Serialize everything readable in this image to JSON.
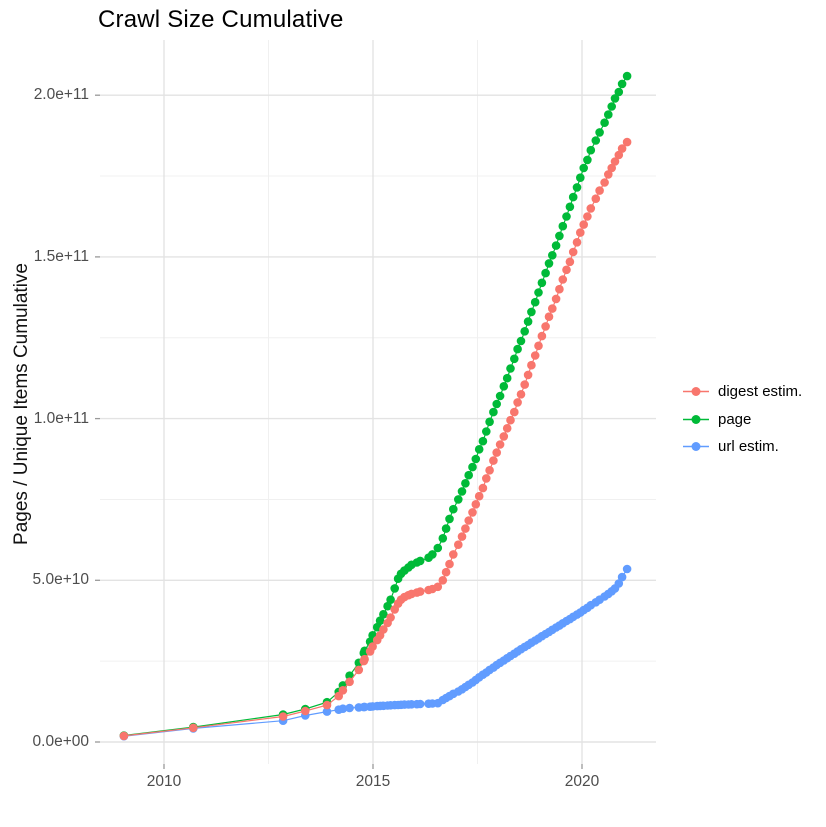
{
  "title": "Crawl Size Cumulative",
  "colors": {
    "background": "#ffffff",
    "grid_major": "#e3e3e3",
    "grid_minor": "#f0f0f0",
    "tick_mark": "#999999",
    "tick_text": "#4d4d4d",
    "title_text": "#000000",
    "series_digest": "#F8766D",
    "series_page": "#00BA38",
    "series_url": "#619CFF"
  },
  "chart_data": {
    "type": "scatter",
    "style": "points joined by thin lines (ggplot-like)",
    "title": "Crawl Size Cumulative",
    "xlabel": "",
    "ylabel": "Pages / Unique Items Cumulative",
    "x_range": [
      2008.5,
      2021.8
    ],
    "y_range": [
      0,
      215000000000.0
    ],
    "grid": true,
    "legend_position": "right",
    "x_tick_values": [
      2010,
      2015,
      2020
    ],
    "x_tick_labels": [
      "2010",
      "2015",
      "2020"
    ],
    "x_minor_ticks": [
      2012.5,
      2017.5
    ],
    "y_tick_values": [
      0,
      50000000000.0,
      100000000000.0,
      150000000000.0,
      200000000000.0
    ],
    "y_tick_labels": [
      "0.0e+00",
      "5.0e+10",
      "1.0e+11",
      "1.5e+11",
      "2.0e+11"
    ],
    "y_minor_ticks": [
      25000000000.0,
      75000000000.0,
      125000000000.0,
      175000000000.0
    ],
    "x": [
      2009.04,
      2010.7,
      2012.85,
      2013.38,
      2013.9,
      2014.18,
      2014.28,
      2014.44,
      2014.66,
      2014.78,
      2014.8,
      2014.93,
      2014.99,
      2015.1,
      2015.17,
      2015.25,
      2015.35,
      2015.42,
      2015.52,
      2015.6,
      2015.67,
      2015.75,
      2015.85,
      2015.92,
      2016.05,
      2016.13,
      2016.33,
      2016.42,
      2016.55,
      2016.67,
      2016.75,
      2016.83,
      2016.92,
      2017.04,
      2017.13,
      2017.21,
      2017.29,
      2017.38,
      2017.46,
      2017.54,
      2017.63,
      2017.71,
      2017.79,
      2017.88,
      2017.96,
      2018.04,
      2018.13,
      2018.21,
      2018.29,
      2018.38,
      2018.46,
      2018.54,
      2018.63,
      2018.71,
      2018.79,
      2018.88,
      2018.96,
      2019.04,
      2019.13,
      2019.21,
      2019.29,
      2019.38,
      2019.46,
      2019.54,
      2019.63,
      2019.71,
      2019.79,
      2019.88,
      2019.96,
      2020.04,
      2020.13,
      2020.21,
      2020.33,
      2020.42,
      2020.54,
      2020.63,
      2020.71,
      2020.79,
      2020.88,
      2020.96,
      2021.08
    ],
    "series": [
      {
        "name": "digest estim.",
        "color": "#F8766D",
        "values": [
          1900000000.0,
          4400000000.0,
          7900000000.0,
          9600000000.0,
          11400000000.0,
          14200000000.0,
          16000000000.0,
          18600000000.0,
          22300000000.0,
          25000000000.0,
          25600000000.0,
          28000000000.0,
          29500000000.0,
          31500000000.0,
          33000000000.0,
          34800000000.0,
          36800000000.0,
          38500000000.0,
          41000000000.0,
          42800000000.0,
          44000000000.0,
          44800000000.0,
          45400000000.0,
          45800000000.0,
          46200000000.0,
          46500000000.0,
          47000000000.0,
          47300000000.0,
          48000000000.0,
          50000000000.0,
          52500000000.0,
          55000000000.0,
          58000000000.0,
          61000000000.0,
          63500000000.0,
          66000000000.0,
          68500000000.0,
          71000000000.0,
          73500000000.0,
          76000000000.0,
          78500000000.0,
          81500000000.0,
          84000000000.0,
          87000000000.0,
          89500000000.0,
          92000000000.0,
          94500000000.0,
          97000000000.0,
          99500000000.0,
          102000000000.0,
          105000000000.0,
          107500000000.0,
          110500000000.0,
          113500000000.0,
          116500000000.0,
          119500000000.0,
          122500000000.0,
          125500000000.0,
          128500000000.0,
          131500000000.0,
          134000000000.0,
          137000000000.0,
          140000000000.0,
          143000000000.0,
          146000000000.0,
          148500000000.0,
          151500000000.0,
          154500000000.0,
          157500000000.0,
          160000000000.0,
          162500000000.0,
          165000000000.0,
          168000000000.0,
          170500000000.0,
          173000000000.0,
          175500000000.0,
          177500000000.0,
          179500000000.0,
          181500000000.0,
          183500000000.0,
          185500000000.0
        ]
      },
      {
        "name": "page",
        "color": "#00BA38",
        "values": [
          2000000000.0,
          4600000000.0,
          8500000000.0,
          10200000000.0,
          12300000000.0,
          15500000000.0,
          17500000000.0,
          20500000000.0,
          24500000000.0,
          27500000000.0,
          28200000000.0,
          31000000000.0,
          33000000000.0,
          35500000000.0,
          37500000000.0,
          39500000000.0,
          42000000000.0,
          44000000000.0,
          47500000000.0,
          50500000000.0,
          52000000000.0,
          53000000000.0,
          54000000000.0,
          54800000000.0,
          55500000000.0,
          56000000000.0,
          57000000000.0,
          58000000000.0,
          60000000000.0,
          63000000000.0,
          66000000000.0,
          69000000000.0,
          72000000000.0,
          75000000000.0,
          77500000000.0,
          80000000000.0,
          82500000000.0,
          85000000000.0,
          87500000000.0,
          90500000000.0,
          93000000000.0,
          96000000000.0,
          99000000000.0,
          102000000000.0,
          104500000000.0,
          107000000000.0,
          110000000000.0,
          112500000000.0,
          115500000000.0,
          118500000000.0,
          121500000000.0,
          124000000000.0,
          127000000000.0,
          130000000000.0,
          133000000000.0,
          136000000000.0,
          139000000000.0,
          142000000000.0,
          145000000000.0,
          148000000000.0,
          150500000000.0,
          153500000000.0,
          156500000000.0,
          159500000000.0,
          162500000000.0,
          165500000000.0,
          168500000000.0,
          171500000000.0,
          174500000000.0,
          177500000000.0,
          180000000000.0,
          183000000000.0,
          186000000000.0,
          188500000000.0,
          191500000000.0,
          194000000000.0,
          196500000000.0,
          199000000000.0,
          201000000000.0,
          203500000000.0,
          205900000000.0
        ]
      },
      {
        "name": "url estim.",
        "color": "#619CFF",
        "values": [
          1800000000.0,
          4200000000.0,
          6600000000.0,
          8200000000.0,
          9400000000.0,
          10000000000.0,
          10300000000.0,
          10500000000.0,
          10700000000.0,
          10800000000.0,
          10850000000.0,
          10900000000.0,
          11000000000.0,
          11100000000.0,
          11150000000.0,
          11200000000.0,
          11300000000.0,
          11350000000.0,
          11400000000.0,
          11450000000.0,
          11500000000.0,
          11550000000.0,
          11600000000.0,
          11650000000.0,
          11700000000.0,
          11750000000.0,
          11850000000.0,
          11900000000.0,
          12000000000.0,
          13000000000.0,
          13600000000.0,
          14200000000.0,
          14900000000.0,
          15600000000.0,
          16300000000.0,
          17000000000.0,
          17700000000.0,
          18400000000.0,
          19200000000.0,
          20000000000.0,
          20800000000.0,
          21500000000.0,
          22300000000.0,
          23000000000.0,
          23800000000.0,
          24500000000.0,
          25200000000.0,
          25900000000.0,
          26600000000.0,
          27300000000.0,
          28000000000.0,
          28700000000.0,
          29400000000.0,
          30000000000.0,
          30700000000.0,
          31400000000.0,
          32000000000.0,
          32700000000.0,
          33400000000.0,
          34000000000.0,
          34700000000.0,
          35400000000.0,
          36000000000.0,
          36700000000.0,
          37400000000.0,
          38000000000.0,
          38700000000.0,
          39400000000.0,
          40000000000.0,
          40800000000.0,
          41500000000.0,
          42300000000.0,
          43200000000.0,
          44000000000.0,
          45000000000.0,
          45800000000.0,
          46600000000.0,
          47500000000.0,
          49000000000.0,
          51000000000.0,
          53500000000.0
        ]
      }
    ]
  }
}
